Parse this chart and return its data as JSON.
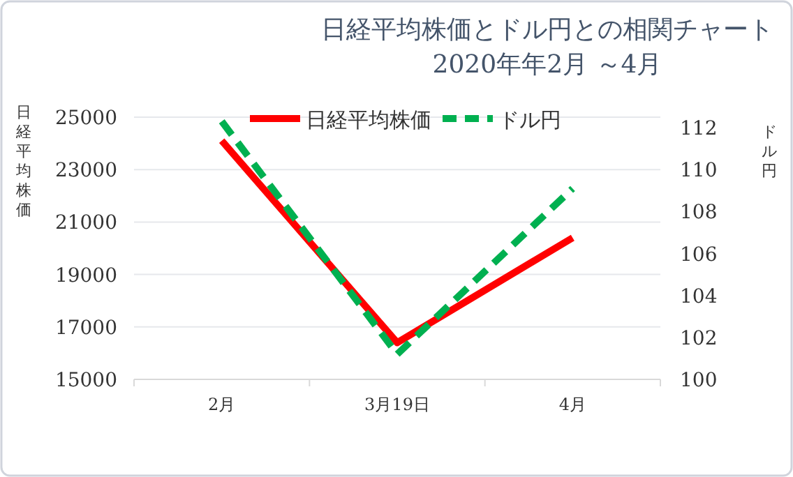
{
  "chart_data": {
    "type": "line",
    "title": "日経平均株価とドル円との相関チャート",
    "subtitle": "2020年年2月 ～4月",
    "ylabel": "日経平均株価",
    "y2label": "ドル円",
    "categories": [
      "2月",
      "3月19日",
      "4月"
    ],
    "series": [
      {
        "name": "日経平均株価",
        "color": "#ff0000",
        "line_style": "solid",
        "values": [
          24100,
          16400,
          20400
        ]
      },
      {
        "name": "ドル円",
        "color": "#00b050",
        "line_style": "dashed",
        "axis": "y2",
        "values": [
          112.3,
          101.2,
          109.1
        ]
      }
    ],
    "ylim": [
      15000,
      25000
    ],
    "yticks": [
      15000,
      17000,
      19000,
      21000,
      23000,
      25000
    ],
    "y2lim": [
      100,
      112.5
    ],
    "y2ticks": [
      100,
      102,
      104,
      106,
      108,
      110,
      112
    ],
    "grid": "y",
    "legend": "top",
    "marker": "none"
  }
}
